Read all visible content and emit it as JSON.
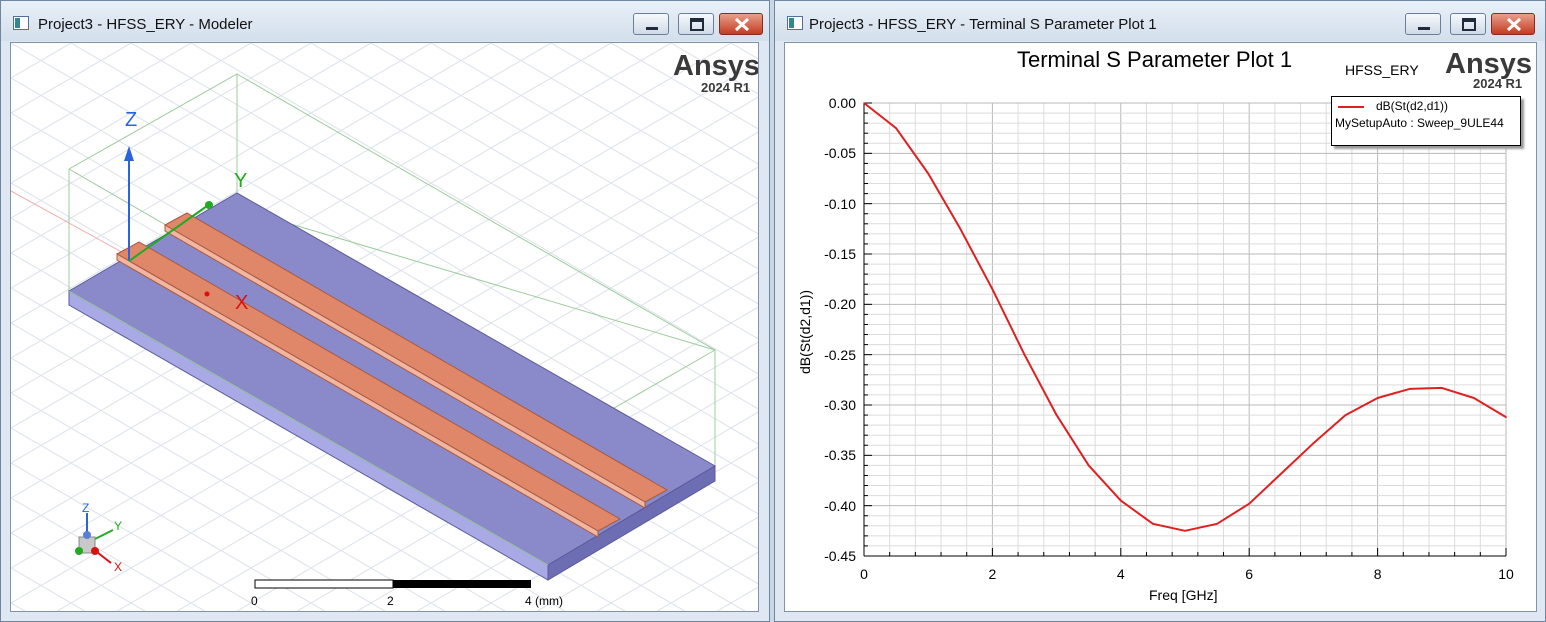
{
  "modeler_window": {
    "title": "Project3 - HFSS_ERY - Modeler",
    "brand": {
      "logo": "Ansys",
      "version": "2024 R1"
    },
    "axes": {
      "z": "Z",
      "y": "Y",
      "x": "X"
    },
    "triad": {
      "z": "Z",
      "y": "Y",
      "x": "X"
    },
    "scale_bar": {
      "labels": [
        "0",
        "2",
        "4 (mm)"
      ]
    },
    "colors": {
      "substrate": "#8a8acb",
      "trace": "#e0876a",
      "grid": "#d6dce6"
    }
  },
  "plot_window": {
    "title": "Project3 - HFSS_ERY - Terminal S Parameter Plot 1",
    "brand": {
      "logo": "Ansys",
      "version": "2024 R1"
    },
    "design_name": "HFSS_ERY",
    "legend": {
      "trace": "dB(St(d2,d1))",
      "setup": "MySetupAuto : Sweep_9ULE44"
    }
  },
  "window_buttons": {
    "minimize": "minimize-icon",
    "maximize": "maximize-icon",
    "close": "close-icon"
  },
  "chart_data": {
    "type": "line",
    "title": "Terminal S Parameter Plot 1",
    "xlabel": "Freq [GHz]",
    "ylabel": "dB(St(d2,d1))",
    "xlim": [
      0,
      10
    ],
    "ylim": [
      -0.45,
      0.0
    ],
    "x_ticks": [
      "0",
      "2",
      "4",
      "6",
      "8",
      "10"
    ],
    "y_ticks": [
      "0.00",
      "-0.05",
      "-0.10",
      "-0.15",
      "-0.20",
      "-0.25",
      "-0.30",
      "-0.35",
      "-0.40",
      "-0.45"
    ],
    "grid": true,
    "legend_position": "top-right",
    "series": [
      {
        "name": "dB(St(d2,d1))",
        "color": "#e02020",
        "x": [
          0,
          0.5,
          1,
          1.5,
          2,
          2.5,
          3,
          3.5,
          4,
          4.5,
          5,
          5.5,
          6,
          6.5,
          7,
          7.5,
          8,
          8.5,
          9,
          9.5,
          10
        ],
        "y": [
          0,
          -0.025,
          -0.07,
          -0.125,
          -0.185,
          -0.25,
          -0.31,
          -0.36,
          -0.395,
          -0.418,
          -0.425,
          -0.418,
          -0.398,
          -0.368,
          -0.338,
          -0.31,
          -0.293,
          -0.284,
          -0.283,
          -0.293,
          -0.312
        ]
      }
    ]
  }
}
